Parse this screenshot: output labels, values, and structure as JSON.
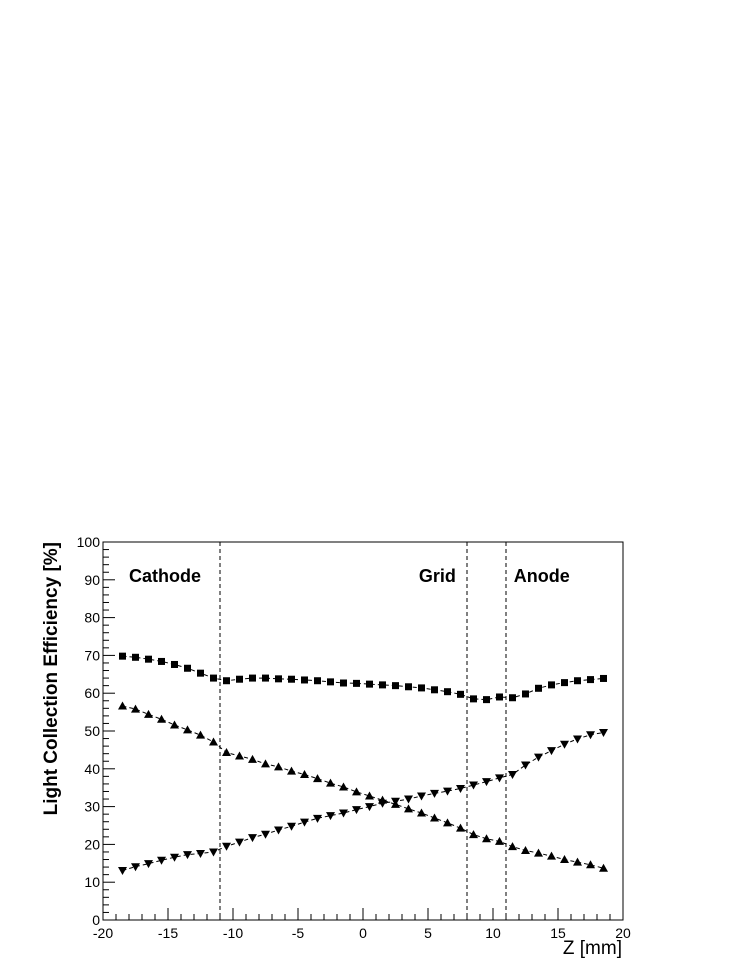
{
  "chart_data": {
    "type": "scatter",
    "title": "",
    "xlabel": "Z [mm]",
    "ylabel": "Light Collection Efficiency [%]",
    "xlim": [
      -20,
      20
    ],
    "ylim": [
      0,
      100
    ],
    "x_ticks": [
      -20,
      -15,
      -10,
      -5,
      0,
      5,
      10,
      15,
      20
    ],
    "y_ticks": [
      0,
      10,
      20,
      30,
      40,
      50,
      60,
      70,
      80,
      90,
      100
    ],
    "grid": false,
    "legend": "none",
    "vertical_lines": [
      -11,
      8,
      11
    ],
    "region_labels": [
      {
        "text": "Cathode",
        "x": -18,
        "y": 91
      },
      {
        "text": "Grid",
        "x": 4.3,
        "y": 91
      },
      {
        "text": "Anode",
        "x": 11.6,
        "y": 91
      }
    ],
    "x": [
      -18.5,
      -17.5,
      -16.5,
      -15.5,
      -14.5,
      -13.5,
      -12.5,
      -11.5,
      -10.5,
      -9.5,
      -8.5,
      -7.5,
      -6.5,
      -5.5,
      -4.5,
      -3.5,
      -2.5,
      -1.5,
      -0.5,
      0.5,
      1.5,
      2.5,
      3.5,
      4.5,
      5.5,
      6.5,
      7.5,
      8.5,
      9.5,
      10.5,
      11.5,
      12.5,
      13.5,
      14.5,
      15.5,
      16.5,
      17.5,
      18.5
    ],
    "series": [
      {
        "marker": "square",
        "values": [
          69.8,
          69.5,
          69.0,
          68.4,
          67.6,
          66.6,
          65.3,
          64.0,
          63.3,
          63.7,
          64.0,
          64.0,
          63.8,
          63.7,
          63.5,
          63.3,
          63.0,
          62.7,
          62.6,
          62.4,
          62.2,
          62.0,
          61.7,
          61.4,
          60.9,
          60.4,
          59.7,
          58.5,
          58.3,
          59.0,
          58.8,
          59.8,
          61.3,
          62.2,
          62.8,
          63.3,
          63.6,
          63.9
        ]
      },
      {
        "marker": "triangle-up",
        "values": [
          56.6,
          55.8,
          54.4,
          53.1,
          51.6,
          50.3,
          48.9,
          47.1,
          44.3,
          43.4,
          42.5,
          41.3,
          40.5,
          39.4,
          38.5,
          37.4,
          36.2,
          35.2,
          33.9,
          32.8,
          31.7,
          30.6,
          29.4,
          28.3,
          27.0,
          25.7,
          24.3,
          22.6,
          21.5,
          20.8,
          19.4,
          18.4,
          17.7,
          16.9,
          16.0,
          15.3,
          14.6,
          13.7
        ]
      },
      {
        "marker": "triangle-down",
        "values": [
          13.1,
          14.1,
          14.9,
          15.8,
          16.6,
          17.3,
          17.6,
          18.0,
          19.5,
          20.6,
          21.8,
          22.7,
          23.8,
          24.8,
          25.9,
          26.9,
          27.6,
          28.3,
          29.2,
          30.0,
          30.9,
          31.4,
          32.0,
          32.8,
          33.5,
          34.1,
          34.8,
          35.7,
          36.6,
          37.6,
          38.5,
          41.0,
          43.1,
          44.8,
          46.5,
          47.9,
          49.0,
          49.6
        ]
      }
    ]
  }
}
